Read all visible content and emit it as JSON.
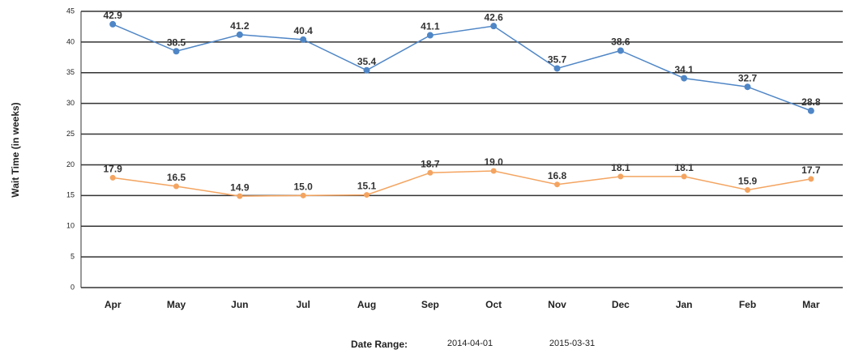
{
  "chart_data": {
    "type": "line",
    "y_label": "Wait Time (in weeks)",
    "categories": [
      "Apr",
      "May",
      "Jun",
      "Jul",
      "Aug",
      "Sep",
      "Oct",
      "Nov",
      "Dec",
      "Jan",
      "Feb",
      "Mar"
    ],
    "series": [
      {
        "color": "#4f86c6",
        "values": [
          42.9,
          38.5,
          41.2,
          40.4,
          35.4,
          41.1,
          42.6,
          35.7,
          38.6,
          34.1,
          32.7,
          28.8
        ],
        "value_labels": [
          "42.9",
          "38.5",
          "41.2",
          "40.4",
          "35.4",
          "41.1",
          "42.6",
          "35.7",
          "38.6",
          "34.1",
          "32.7",
          "28.8"
        ]
      },
      {
        "color": "#f4a460",
        "values": [
          17.9,
          16.5,
          14.9,
          15.0,
          15.1,
          18.7,
          19.0,
          16.8,
          18.1,
          18.1,
          15.9,
          17.7
        ],
        "value_labels": [
          "17.9",
          "16.5",
          "14.9",
          "15.0",
          "15.1",
          "18.7",
          "19.0",
          "16.8",
          "18.1",
          "18.1",
          "15.9",
          "17.7"
        ]
      }
    ],
    "ylim": [
      0,
      45
    ],
    "yticks": [
      0,
      5,
      10,
      15,
      20,
      25,
      30,
      35,
      40,
      45
    ],
    "grid": true,
    "footer": {
      "label": "Date Range:",
      "start": "2014-04-01",
      "end": "2015-03-31"
    }
  }
}
